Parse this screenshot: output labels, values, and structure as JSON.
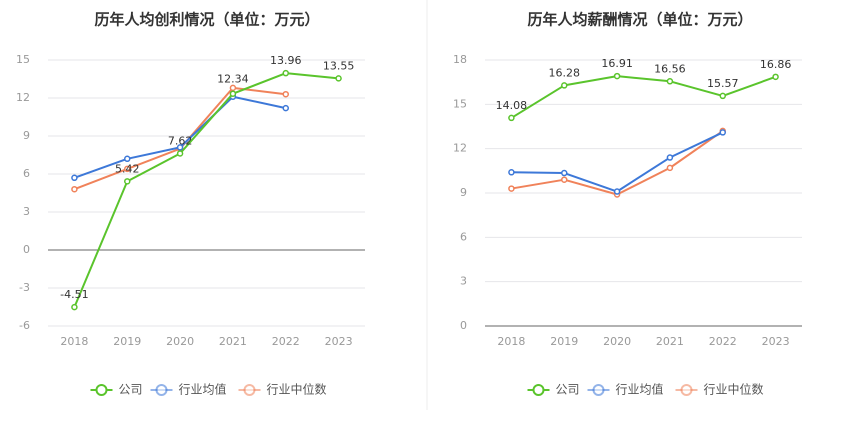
{
  "chart_data": [
    {
      "type": "line",
      "title": "历年人均创利情况（单位：万元）",
      "categories": [
        "2018",
        "2019",
        "2020",
        "2021",
        "2022",
        "2023"
      ],
      "ylim": [
        -6,
        15
      ],
      "yticks": [
        "15",
        "12",
        "9",
        "6",
        "3",
        "0",
        "-3",
        "-6"
      ],
      "ytick_values": [
        15,
        12,
        9,
        6,
        3,
        0,
        -3,
        -6
      ],
      "series": [
        {
          "name": "公司",
          "color": "#5ac42c",
          "values": [
            -4.51,
            5.42,
            7.62,
            12.34,
            13.96,
            13.55
          ],
          "labels": [
            "-4.51",
            "5.42",
            "7.62",
            "12.34",
            "13.96",
            "13.55"
          ]
        },
        {
          "name": "行业均值",
          "color": "#3d78d8",
          "values": [
            5.7,
            7.2,
            8.1,
            12.1,
            11.2,
            null
          ]
        },
        {
          "name": "行业中位数",
          "color": "#f0825a",
          "values": [
            4.8,
            6.4,
            8.0,
            12.8,
            12.3,
            null
          ]
        }
      ]
    },
    {
      "type": "line",
      "title": "历年人均薪酬情况（单位：万元）",
      "categories": [
        "2018",
        "2019",
        "2020",
        "2021",
        "2022",
        "2023"
      ],
      "ylim": [
        0,
        18
      ],
      "yticks": [
        "18",
        "15",
        "12",
        "9",
        "6",
        "3",
        "0"
      ],
      "ytick_values": [
        18,
        15,
        12,
        9,
        6,
        3,
        0
      ],
      "series": [
        {
          "name": "公司",
          "color": "#5ac42c",
          "values": [
            14.08,
            16.28,
            16.91,
            16.56,
            15.57,
            16.86
          ],
          "labels": [
            "14.08",
            "16.28",
            "16.91",
            "16.56",
            "15.57",
            "16.86"
          ]
        },
        {
          "name": "行业均值",
          "color": "#3d78d8",
          "values": [
            10.4,
            10.35,
            9.1,
            11.4,
            13.1,
            null
          ]
        },
        {
          "name": "行业中位数",
          "color": "#f0825a",
          "values": [
            9.3,
            9.9,
            8.9,
            10.7,
            13.2,
            null
          ]
        }
      ]
    }
  ],
  "legend": {
    "items": [
      {
        "label": "公司",
        "color": "#5ac42c"
      },
      {
        "label": "行业均值",
        "color": "#3d78d8"
      },
      {
        "label": "行业中位数",
        "color": "#f0825a"
      }
    ]
  }
}
